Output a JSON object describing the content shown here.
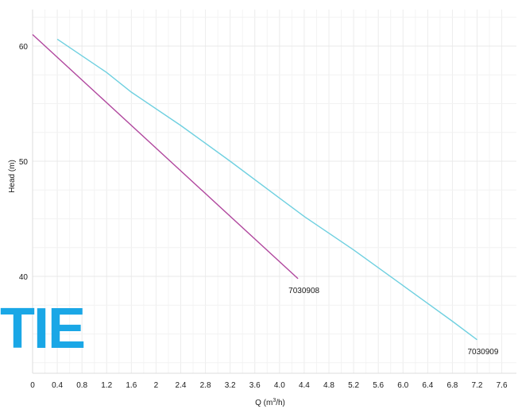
{
  "chart_data": {
    "type": "line",
    "title": "",
    "xlabel": "Q (m³/h)",
    "ylabel": "Head (m)",
    "xlim": [
      0,
      7.6
    ],
    "ylim": [
      32.5,
      63
    ],
    "x_ticks": [
      "0",
      "0.4",
      "0.8",
      "1.2",
      "1.6",
      "2",
      "2.4",
      "2.8",
      "3.2",
      "3.6",
      "4.0",
      "4.4",
      "4.8",
      "5.2",
      "5.6",
      "6.0",
      "6.4",
      "6.8",
      "7.2",
      "7.6"
    ],
    "y_ticks": [
      "40",
      "50",
      "60"
    ],
    "grid": true,
    "series": [
      {
        "name": "7030908",
        "color": "#b0479e",
        "x": [
          0,
          4.3
        ],
        "y": [
          61.0,
          39.8
        ]
      },
      {
        "name": "7030909",
        "color": "#6fd0e0",
        "x": [
          0.4,
          1.2,
          1.6,
          2.4,
          3.2,
          4.0,
          4.4,
          5.2,
          6.0,
          6.8,
          7.2
        ],
        "y": [
          60.6,
          57.7,
          56.0,
          53.1,
          50.0,
          46.8,
          45.2,
          42.3,
          39.2,
          36.1,
          34.5
        ]
      }
    ]
  },
  "watermark": "TIE"
}
